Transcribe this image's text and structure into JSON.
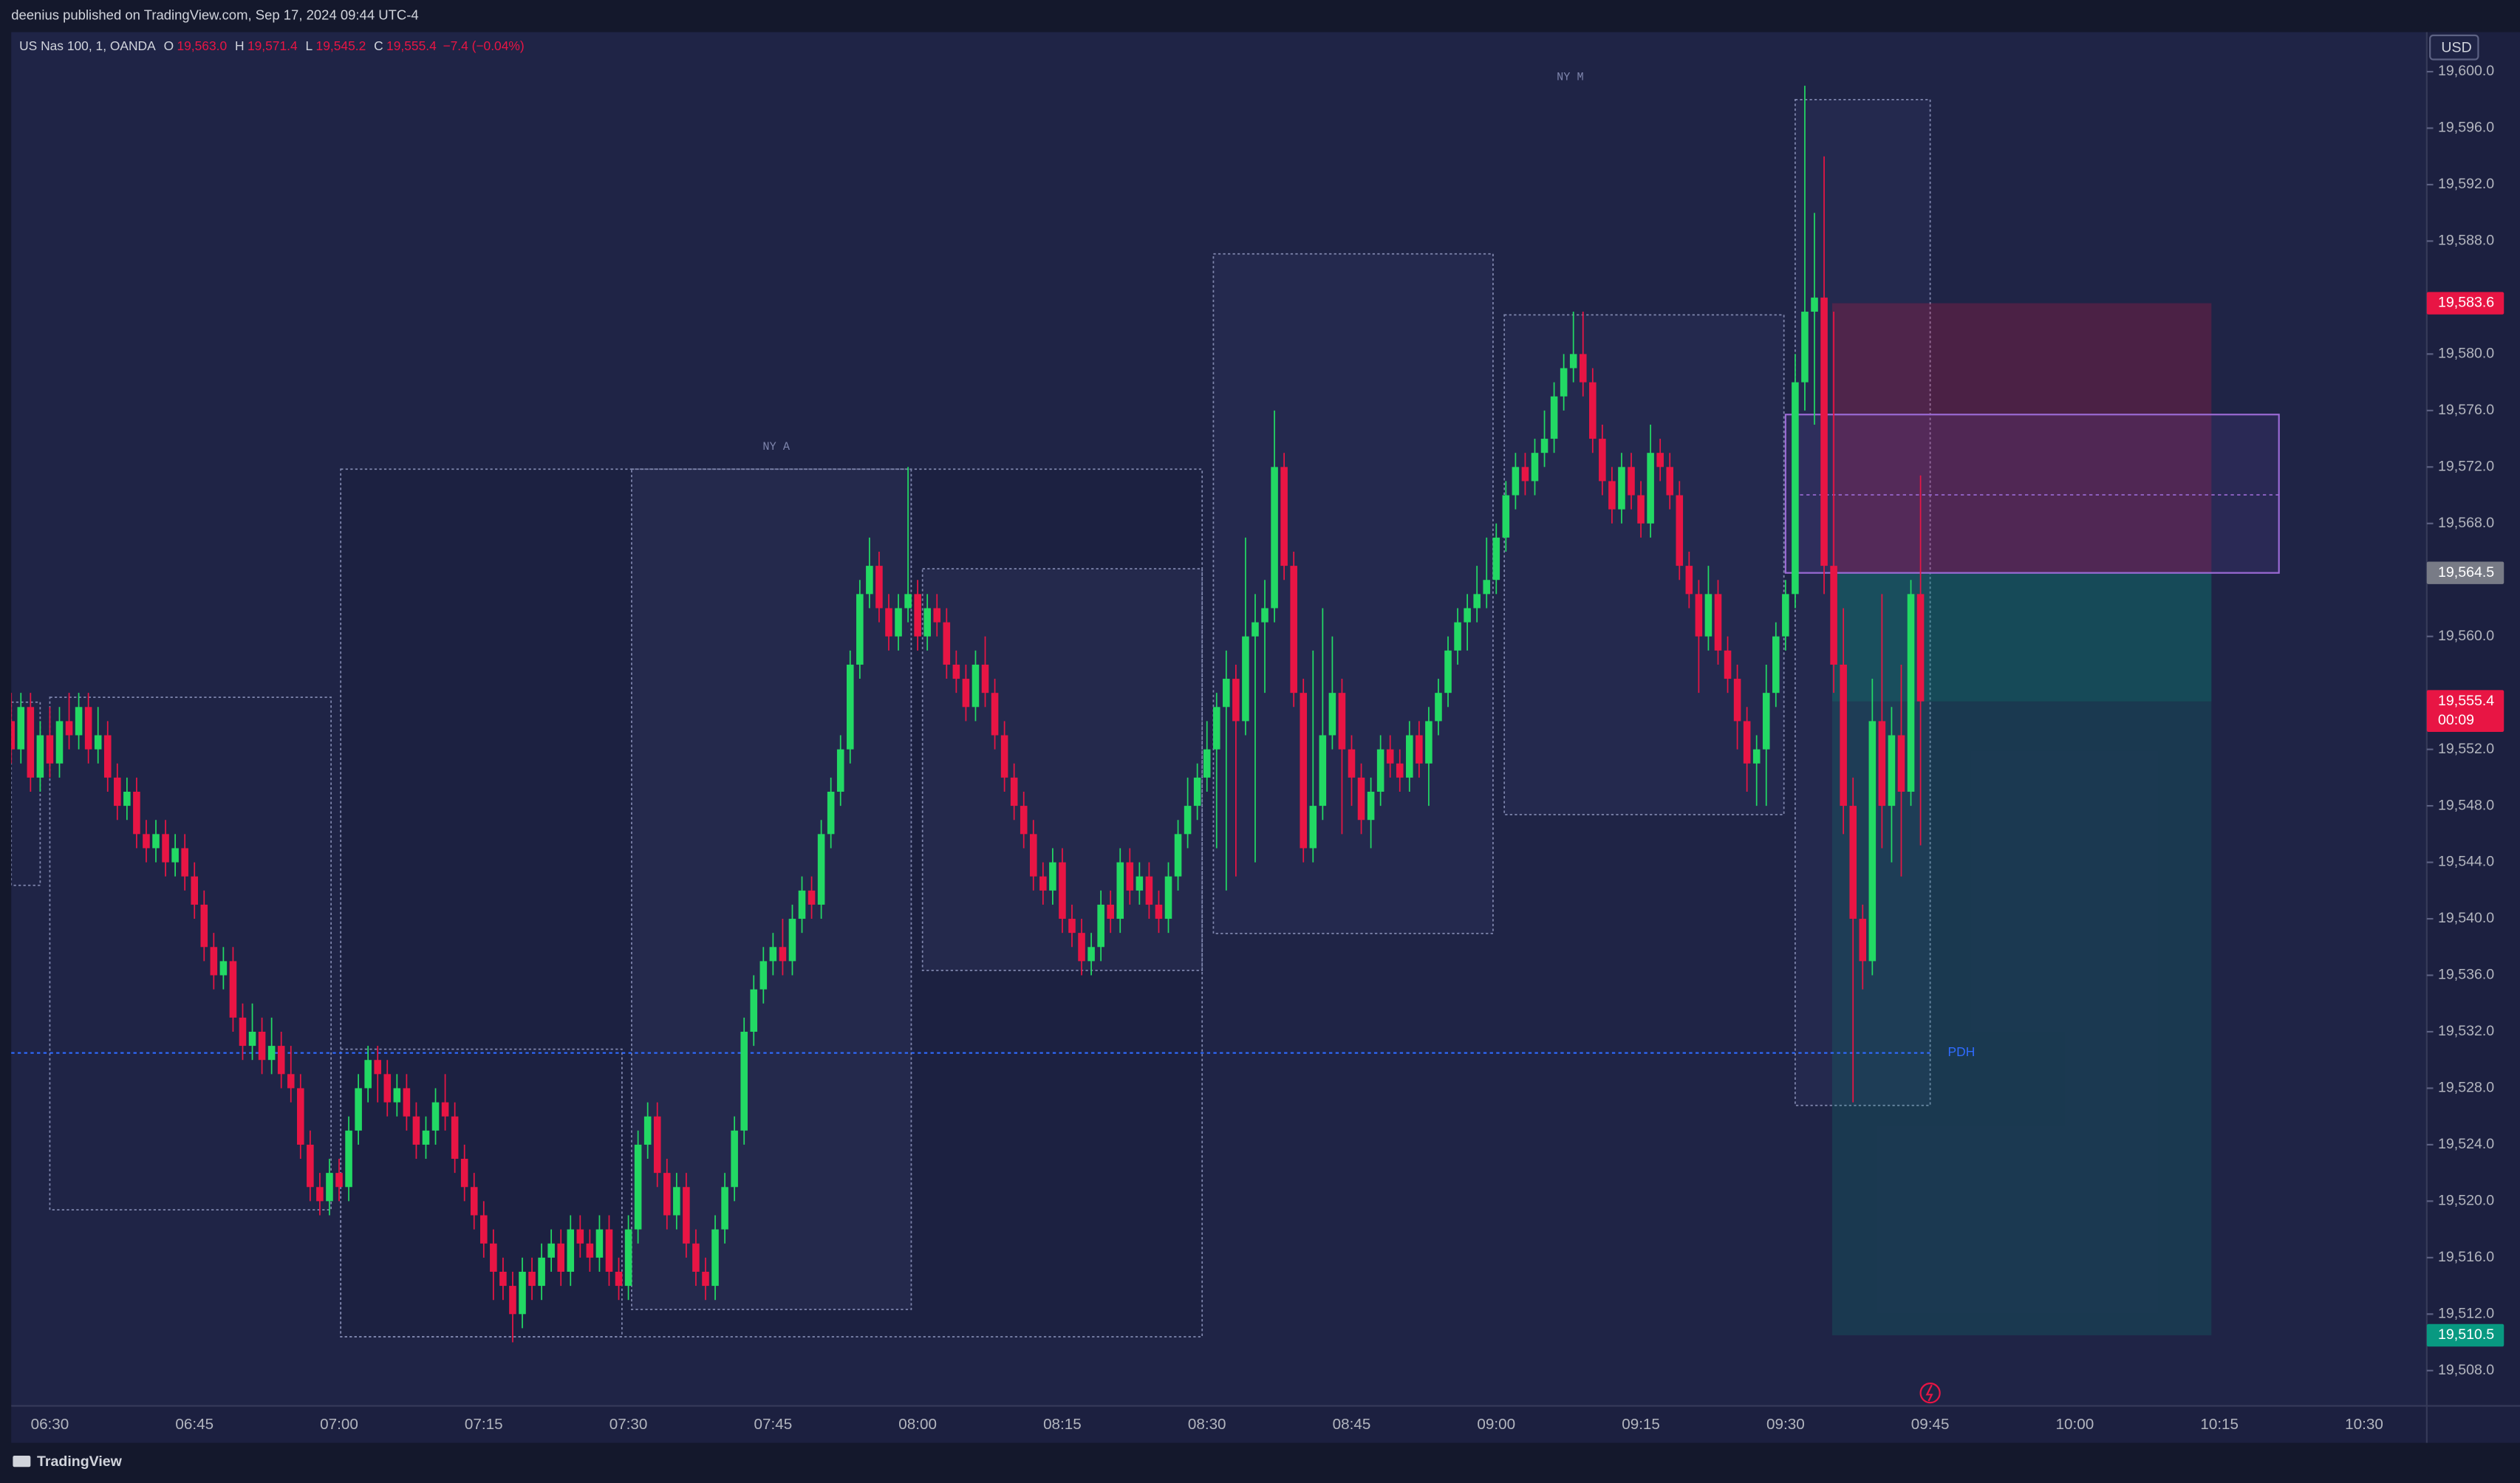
{
  "page": {
    "attribution": "deenius published on TradingView.com, Sep 17, 2024 09:44 UTC-4",
    "footer": "TradingView"
  },
  "chart_data": {
    "type": "candlestick",
    "symbol": "US Nas 100, 1, OANDA",
    "legend": [
      {
        "key": "O",
        "value": "19,563.0"
      },
      {
        "key": "H",
        "value": "19,571.4"
      },
      {
        "key": "L",
        "value": "19,545.2"
      },
      {
        "key": "C",
        "value": "19,555.4"
      }
    ],
    "legend_change": "−7.4 (−0.04%)",
    "currency": "USD",
    "up_color": "#22d964",
    "down_color": "#e81544",
    "ylim": [
      19505.5,
      19602.8
    ],
    "yticks": [
      {
        "value": 19600,
        "label": "19,600.0"
      },
      {
        "value": 19596,
        "label": "19,596.0"
      },
      {
        "value": 19592,
        "label": "19,592.0"
      },
      {
        "value": 19588,
        "label": "19,588.0"
      },
      {
        "value": 19580,
        "label": "19,580.0"
      },
      {
        "value": 19576,
        "label": "19,576.0"
      },
      {
        "value": 19572,
        "label": "19,572.0"
      },
      {
        "value": 19568,
        "label": "19,568.0"
      },
      {
        "value": 19560,
        "label": "19,560.0"
      },
      {
        "value": 19552,
        "label": "19,552.0"
      },
      {
        "value": 19548,
        "label": "19,548.0"
      },
      {
        "value": 19544,
        "label": "19,544.0"
      },
      {
        "value": 19540,
        "label": "19,540.0"
      },
      {
        "value": 19536,
        "label": "19,536.0"
      },
      {
        "value": 19532,
        "label": "19,532.0"
      },
      {
        "value": 19528,
        "label": "19,528.0"
      },
      {
        "value": 19524,
        "label": "19,524.0"
      },
      {
        "value": 19520,
        "label": "19,520.0"
      },
      {
        "value": 19516,
        "label": "19,516.0"
      },
      {
        "value": 19512,
        "label": "19,512.0"
      },
      {
        "value": 19508,
        "label": "19,508.0"
      }
    ],
    "time_labels": [
      "06:30",
      "06:45",
      "07:00",
      "07:15",
      "07:30",
      "07:45",
      "08:00",
      "08:15",
      "08:30",
      "08:45",
      "09:00",
      "09:15",
      "09:30",
      "09:45",
      "10:00",
      "10:15",
      "10:30"
    ],
    "levels": {
      "stop": {
        "value": 19583.6,
        "label": "19,583.6"
      },
      "entry": {
        "value": 19564.5,
        "label": "19,564.5"
      },
      "last": {
        "value": 19555.4,
        "label": "19,555.4",
        "countdown": "00:09"
      },
      "target": {
        "value": 19510.5,
        "label": "19,510.5"
      }
    },
    "pdh": {
      "value": 19530.5,
      "label": "PDH"
    },
    "sessions": [
      "NY A",
      "NY M"
    ],
    "candles": [
      [
        19552,
        19553,
        19550,
        19551
      ],
      [
        19551,
        19555,
        19550,
        19554
      ],
      [
        19554,
        19556,
        19551,
        19552
      ],
      [
        19552,
        19556,
        19551,
        19555
      ],
      [
        19555,
        19556,
        19549,
        19550
      ],
      [
        19550,
        19554,
        19549,
        19553
      ],
      [
        19553,
        19555,
        19550,
        19551
      ],
      [
        19551,
        19555,
        19550,
        19554
      ],
      [
        19554,
        19556,
        19552,
        19553
      ],
      [
        19553,
        19556,
        19552,
        19555
      ],
      [
        19555,
        19556,
        19551,
        19552
      ],
      [
        19552,
        19555,
        19551,
        19553
      ],
      [
        19553,
        19554,
        19549,
        19550
      ],
      [
        19550,
        19551,
        19547,
        19548
      ],
      [
        19548,
        19550,
        19547,
        19549
      ],
      [
        19549,
        19550,
        19545,
        19546
      ],
      [
        19546,
        19547,
        19544,
        19545
      ],
      [
        19545,
        19547,
        19544,
        19546
      ],
      [
        19546,
        19547,
        19543,
        19544
      ],
      [
        19544,
        19546,
        19543,
        19545
      ],
      [
        19545,
        19546,
        19542,
        19543
      ],
      [
        19543,
        19544,
        19540,
        19541
      ],
      [
        19541,
        19542,
        19537,
        19538
      ],
      [
        19538,
        19539,
        19535,
        19536
      ],
      [
        19536,
        19538,
        19535,
        19537
      ],
      [
        19537,
        19538,
        19532,
        19533
      ],
      [
        19533,
        19534,
        19530,
        19531
      ],
      [
        19531,
        19534,
        19530,
        19532
      ],
      [
        19532,
        19533,
        19529,
        19530
      ],
      [
        19530,
        19533,
        19529,
        19531
      ],
      [
        19531,
        19532,
        19528,
        19529
      ],
      [
        19529,
        19531,
        19527,
        19528
      ],
      [
        19528,
        19529,
        19523,
        19524
      ],
      [
        19524,
        19525,
        19520,
        19521
      ],
      [
        19521,
        19522,
        19519,
        19520
      ],
      [
        19520,
        19523,
        19519,
        19522
      ],
      [
        19522,
        19523,
        19520,
        19521
      ],
      [
        19521,
        19526,
        19520,
        19525
      ],
      [
        19525,
        19529,
        19524,
        19528
      ],
      [
        19528,
        19531,
        19527,
        19530
      ],
      [
        19530,
        19531,
        19527,
        19529
      ],
      [
        19529,
        19530,
        19526,
        19527
      ],
      [
        19527,
        19529,
        19526,
        19528
      ],
      [
        19528,
        19529,
        19525,
        19526
      ],
      [
        19526,
        19527,
        19523,
        19524
      ],
      [
        19524,
        19526,
        19523,
        19525
      ],
      [
        19525,
        19528,
        19524,
        19527
      ],
      [
        19527,
        19529,
        19525,
        19526
      ],
      [
        19526,
        19527,
        19522,
        19523
      ],
      [
        19523,
        19524,
        19520,
        19521
      ],
      [
        19521,
        19522,
        19518,
        19519
      ],
      [
        19519,
        19520,
        19516,
        19517
      ],
      [
        19517,
        19518,
        19513,
        19515
      ],
      [
        19515,
        19516,
        19513,
        19514
      ],
      [
        19514,
        19515,
        19510,
        19512
      ],
      [
        19512,
        19516,
        19511,
        19515
      ],
      [
        19515,
        19516,
        19513,
        19514
      ],
      [
        19514,
        19517,
        19513,
        19516
      ],
      [
        19516,
        19518,
        19515,
        19517
      ],
      [
        19517,
        19518,
        19514,
        19515
      ],
      [
        19515,
        19519,
        19514,
        19518
      ],
      [
        19518,
        19519,
        19516,
        19517
      ],
      [
        19517,
        19518,
        19515,
        19516
      ],
      [
        19516,
        19519,
        19515,
        19518
      ],
      [
        19518,
        19519,
        19514,
        19515
      ],
      [
        19515,
        19516,
        19513,
        19514
      ],
      [
        19514,
        19519,
        19513,
        19518
      ],
      [
        19518,
        19525,
        19517,
        19524
      ],
      [
        19524,
        19527,
        19523,
        19526
      ],
      [
        19526,
        19527,
        19521,
        19522
      ],
      [
        19522,
        19523,
        19518,
        19519
      ],
      [
        19519,
        19522,
        19518,
        19521
      ],
      [
        19521,
        19522,
        19516,
        19517
      ],
      [
        19517,
        19518,
        19514,
        19515
      ],
      [
        19515,
        19516,
        19513,
        19514
      ],
      [
        19514,
        19519,
        19513,
        19518
      ],
      [
        19518,
        19522,
        19517,
        19521
      ],
      [
        19521,
        19526,
        19520,
        19525
      ],
      [
        19525,
        19533,
        19524,
        19532
      ],
      [
        19532,
        19536,
        19531,
        19535
      ],
      [
        19535,
        19538,
        19534,
        19537
      ],
      [
        19537,
        19539,
        19536,
        19538
      ],
      [
        19538,
        19540,
        19536,
        19537
      ],
      [
        19537,
        19541,
        19536,
        19540
      ],
      [
        19540,
        19543,
        19539,
        19542
      ],
      [
        19542,
        19543,
        19540,
        19541
      ],
      [
        19541,
        19547,
        19540,
        19546
      ],
      [
        19546,
        19550,
        19545,
        19549
      ],
      [
        19549,
        19553,
        19548,
        19552
      ],
      [
        19552,
        19559,
        19551,
        19558
      ],
      [
        19558,
        19564,
        19557,
        19563
      ],
      [
        19563,
        19567,
        19562,
        19565
      ],
      [
        19565,
        19566,
        19561,
        19562
      ],
      [
        19562,
        19563,
        19559,
        19560
      ],
      [
        19560,
        19563,
        19559,
        19562
      ],
      [
        19562,
        19572,
        19561,
        19563
      ],
      [
        19563,
        19564,
        19559,
        19560
      ],
      [
        19560,
        19563,
        19559,
        19562
      ],
      [
        19562,
        19563,
        19560,
        19561
      ],
      [
        19561,
        19562,
        19557,
        19558
      ],
      [
        19558,
        19559,
        19556,
        19557
      ],
      [
        19557,
        19558,
        19554,
        19555
      ],
      [
        19555,
        19559,
        19554,
        19558
      ],
      [
        19558,
        19560,
        19555,
        19556
      ],
      [
        19556,
        19557,
        19552,
        19553
      ],
      [
        19553,
        19554,
        19549,
        19550
      ],
      [
        19550,
        19551,
        19547,
        19548
      ],
      [
        19548,
        19549,
        19545,
        19546
      ],
      [
        19546,
        19547,
        19542,
        19543
      ],
      [
        19543,
        19544,
        19541,
        19542
      ],
      [
        19542,
        19545,
        19541,
        19544
      ],
      [
        19544,
        19545,
        19539,
        19540
      ],
      [
        19540,
        19541,
        19538,
        19539
      ],
      [
        19539,
        19540,
        19536,
        19537
      ],
      [
        19537,
        19539,
        19536,
        19538
      ],
      [
        19538,
        19542,
        19537,
        19541
      ],
      [
        19541,
        19542,
        19539,
        19540
      ],
      [
        19540,
        19545,
        19539,
        19544
      ],
      [
        19544,
        19545,
        19541,
        19542
      ],
      [
        19542,
        19544,
        19541,
        19543
      ],
      [
        19543,
        19544,
        19540,
        19541
      ],
      [
        19541,
        19542,
        19539,
        19540
      ],
      [
        19540,
        19544,
        19539,
        19543
      ],
      [
        19543,
        19547,
        19542,
        19546
      ],
      [
        19546,
        19550,
        19545,
        19548
      ],
      [
        19548,
        19551,
        19547,
        19550
      ],
      [
        19550,
        19554,
        19549,
        19552
      ],
      [
        19552,
        19556,
        19545,
        19555
      ],
      [
        19555,
        19559,
        19542,
        19557
      ],
      [
        19557,
        19558,
        19543,
        19554
      ],
      [
        19554,
        19567,
        19553,
        19560
      ],
      [
        19560,
        19563,
        19544,
        19561
      ],
      [
        19561,
        19564,
        19556,
        19562
      ],
      [
        19562,
        19576,
        19561,
        19572
      ],
      [
        19572,
        19573,
        19564,
        19565
      ],
      [
        19565,
        19566,
        19555,
        19556
      ],
      [
        19556,
        19557,
        19544,
        19545
      ],
      [
        19545,
        19559,
        19544,
        19548
      ],
      [
        19548,
        19562,
        19547,
        19553
      ],
      [
        19553,
        19560,
        19552,
        19556
      ],
      [
        19556,
        19557,
        19546,
        19552
      ],
      [
        19552,
        19553,
        19548,
        19550
      ],
      [
        19550,
        19551,
        19546,
        19547
      ],
      [
        19547,
        19550,
        19545,
        19549
      ],
      [
        19549,
        19553,
        19548,
        19552
      ],
      [
        19552,
        19553,
        19550,
        19551
      ],
      [
        19551,
        19552,
        19549,
        19550
      ],
      [
        19550,
        19554,
        19549,
        19553
      ],
      [
        19553,
        19554,
        19550,
        19551
      ],
      [
        19551,
        19555,
        19548,
        19554
      ],
      [
        19554,
        19557,
        19553,
        19556
      ],
      [
        19556,
        19560,
        19555,
        19559
      ],
      [
        19559,
        19562,
        19558,
        19561
      ],
      [
        19561,
        19563,
        19559,
        19562
      ],
      [
        19562,
        19565,
        19561,
        19563
      ],
      [
        19563,
        19567,
        19562,
        19564
      ],
      [
        19564,
        19568,
        19563,
        19567
      ],
      [
        19567,
        19571,
        19566,
        19570
      ],
      [
        19570,
        19573,
        19569,
        19572
      ],
      [
        19572,
        19573,
        19570,
        19571
      ],
      [
        19571,
        19574,
        19570,
        19573
      ],
      [
        19573,
        19576,
        19572,
        19574
      ],
      [
        19574,
        19578,
        19573,
        19577
      ],
      [
        19577,
        19580,
        19576,
        19579
      ],
      [
        19579,
        19583,
        19578,
        19580
      ],
      [
        19580,
        19583,
        19577,
        19578
      ],
      [
        19578,
        19579,
        19573,
        19574
      ],
      [
        19574,
        19575,
        19570,
        19571
      ],
      [
        19571,
        19572,
        19568,
        19569
      ],
      [
        19569,
        19573,
        19568,
        19572
      ],
      [
        19572,
        19573,
        19569,
        19570
      ],
      [
        19570,
        19571,
        19567,
        19568
      ],
      [
        19568,
        19575,
        19567,
        19573
      ],
      [
        19573,
        19574,
        19571,
        19572
      ],
      [
        19572,
        19573,
        19569,
        19570
      ],
      [
        19570,
        19571,
        19564,
        19565
      ],
      [
        19565,
        19566,
        19562,
        19563
      ],
      [
        19563,
        19564,
        19556,
        19560
      ],
      [
        19560,
        19565,
        19559,
        19563
      ],
      [
        19563,
        19564,
        19558,
        19559
      ],
      [
        19559,
        19560,
        19556,
        19557
      ],
      [
        19557,
        19558,
        19552,
        19554
      ],
      [
        19554,
        19555,
        19549,
        19551
      ],
      [
        19551,
        19553,
        19548,
        19552
      ],
      [
        19552,
        19558,
        19548,
        19556
      ],
      [
        19556,
        19561,
        19555,
        19560
      ],
      [
        19560,
        19564,
        19559,
        19563
      ],
      [
        19563,
        19580,
        19562,
        19578
      ],
      [
        19578,
        19599,
        19576,
        19583
      ],
      [
        19583,
        19590,
        19575,
        19584
      ],
      [
        19584,
        19594,
        19563,
        19565
      ],
      [
        19565,
        19583,
        19556,
        19558
      ],
      [
        19558,
        19562,
        19546,
        19548
      ],
      [
        19548,
        19550,
        19527,
        19540
      ],
      [
        19540,
        19541,
        19535,
        19537
      ],
      [
        19537,
        19557,
        19536,
        19554
      ],
      [
        19554,
        19563,
        19545,
        19548
      ],
      [
        19548,
        19555,
        19544,
        19553
      ],
      [
        19553,
        19558,
        19543,
        19549
      ],
      [
        19549,
        19564,
        19548,
        19563
      ],
      [
        19563,
        19571.4,
        19545.2,
        19555.4
      ]
    ]
  }
}
